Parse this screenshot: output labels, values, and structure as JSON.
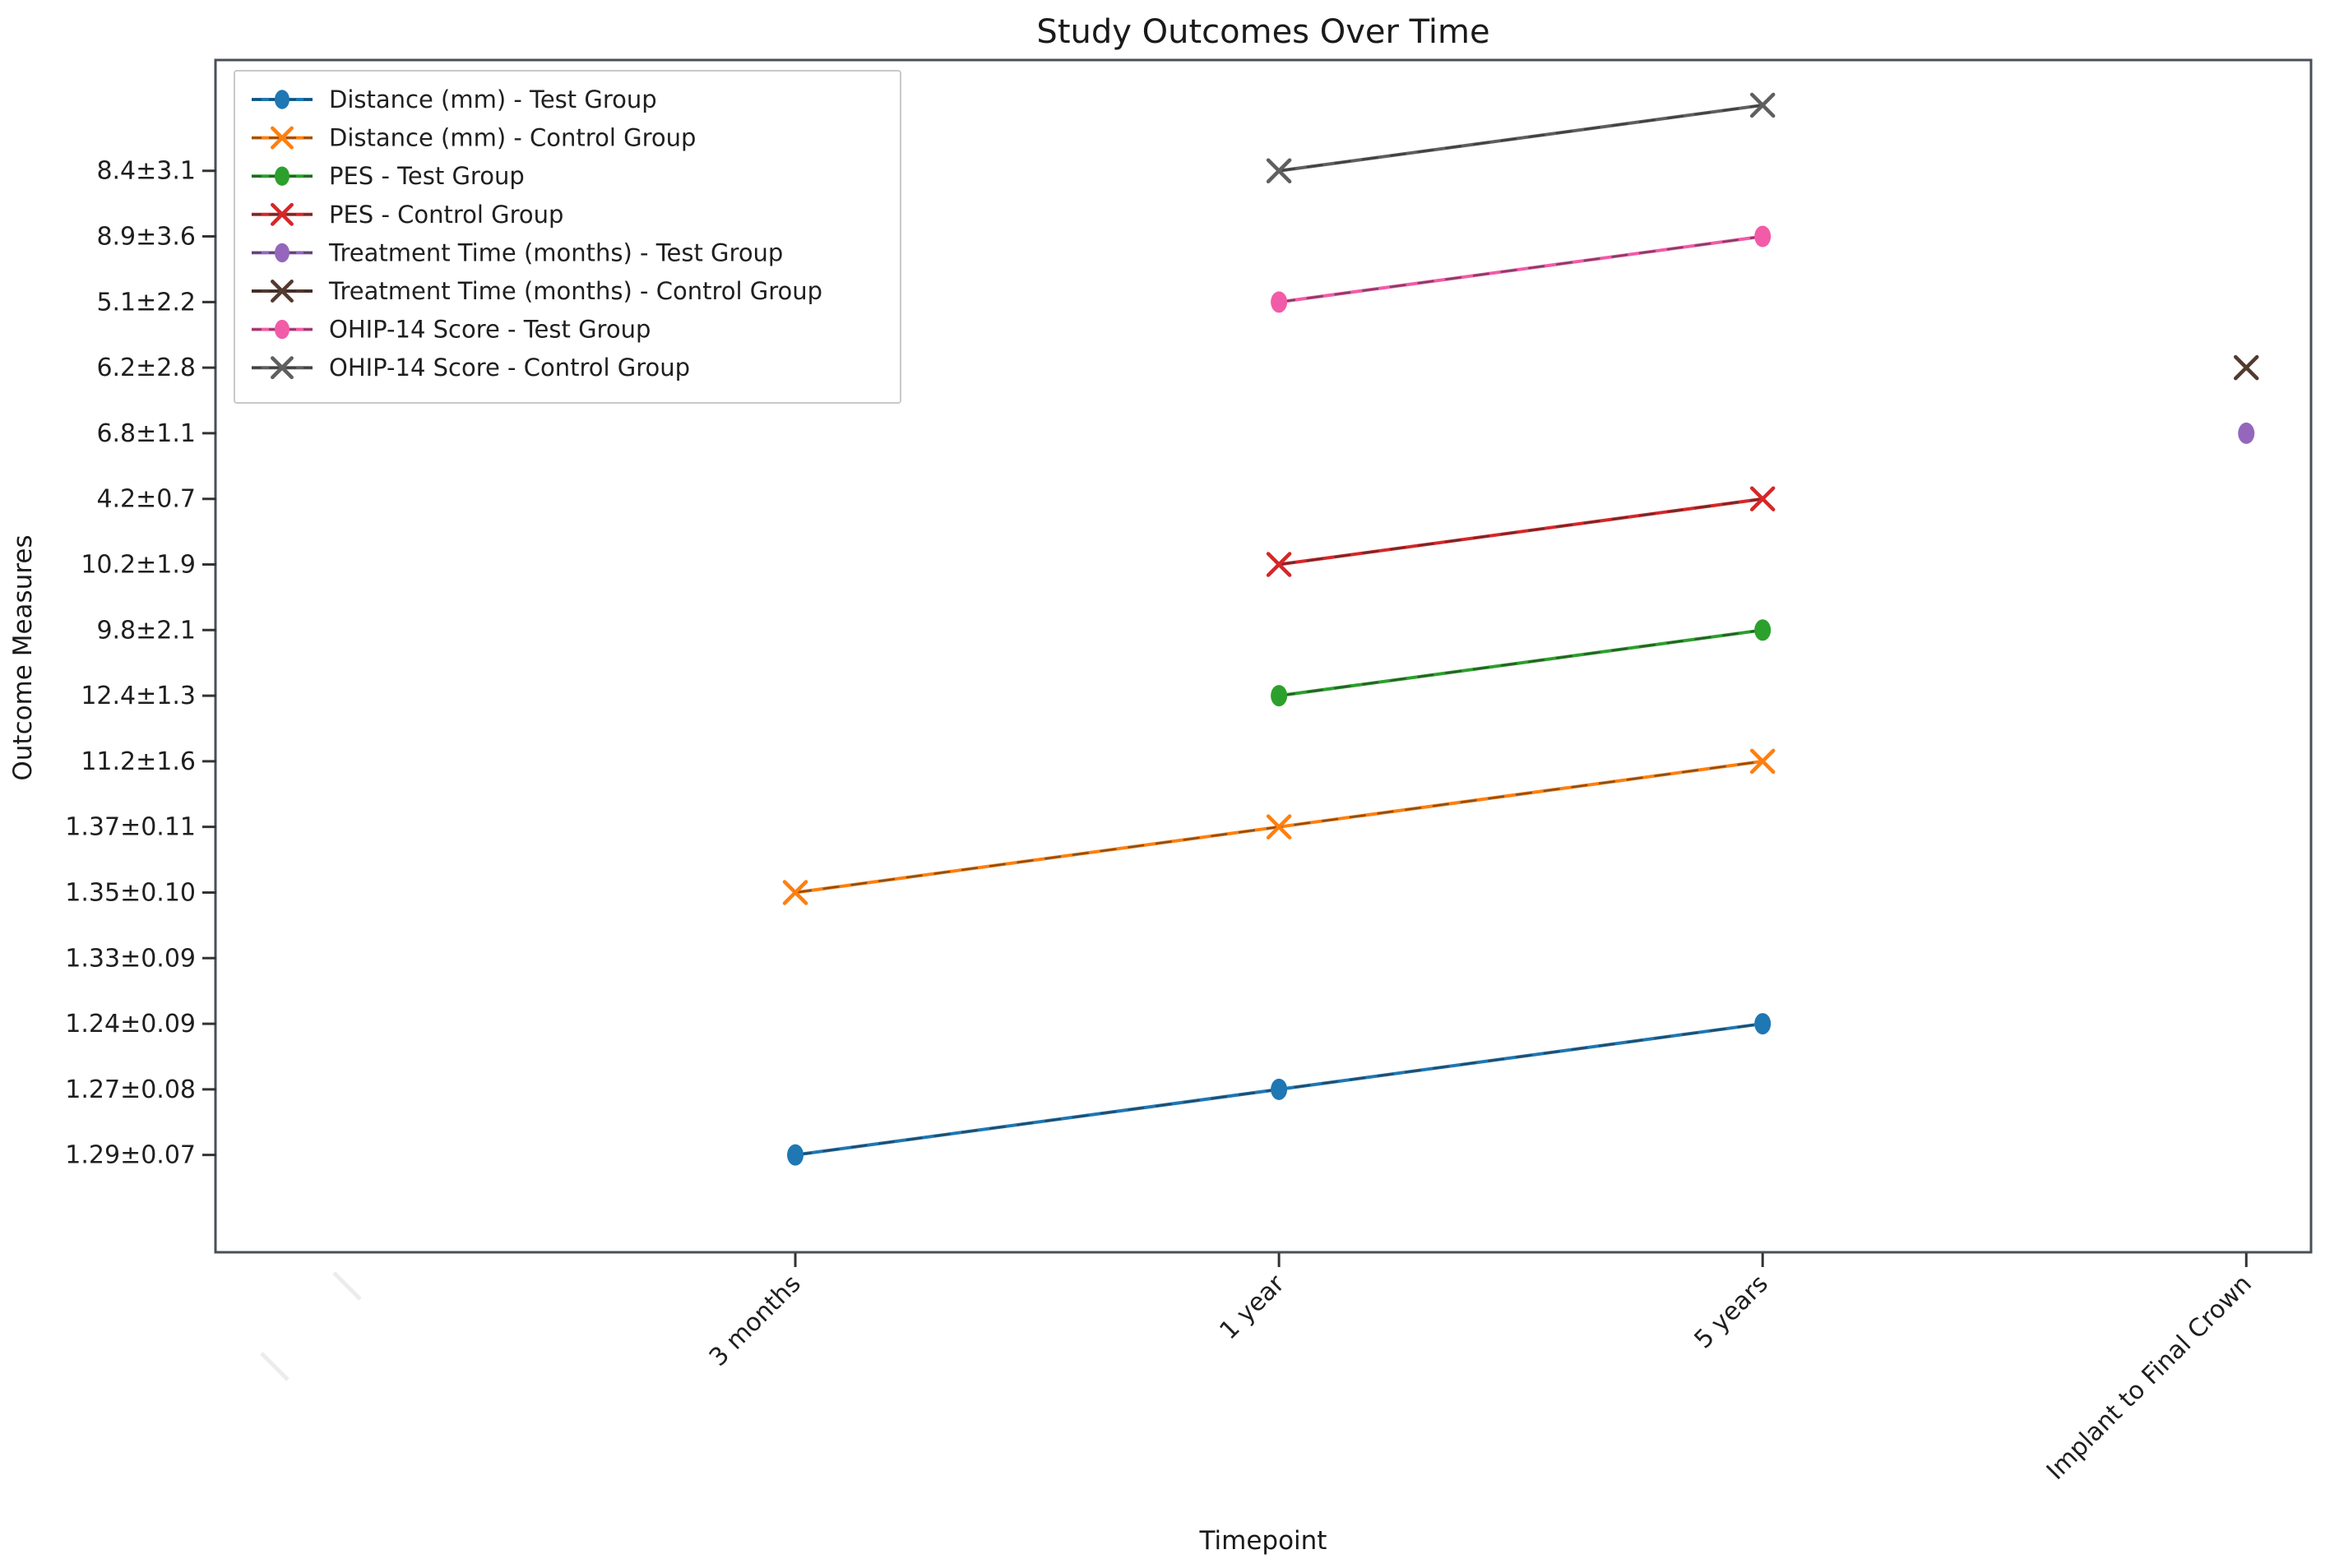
{
  "chart_data": {
    "type": "line",
    "title": "Study Outcomes Over Time",
    "xlabel": "Timepoint",
    "ylabel": "Outcome Measures",
    "grid": false,
    "legend_position": "upper-left-inside",
    "x_categories": [
      "3 months",
      "1 year",
      "5 years",
      "Implant to Final Crown"
    ],
    "y_categories_top_to_bottom": [
      "",
      "8.4±3.1",
      "8.9±3.6",
      "5.1±2.2",
      "6.2±2.8",
      "6.8±1.1",
      "4.2±0.7",
      "10.2±1.9",
      "9.8±2.1",
      "12.4±1.3",
      "11.2±1.6",
      "1.37±0.11",
      "1.35±0.10",
      "1.33±0.09",
      "1.24±0.09",
      "1.27±0.08",
      "1.29±0.07"
    ],
    "series": [
      {
        "name": "Distance (mm) - Test Group",
        "color": "#1f77b4",
        "marker": "circle",
        "points": [
          {
            "x": "3 months",
            "y": "1.29±0.07"
          },
          {
            "x": "1 year",
            "y": "1.27±0.08"
          },
          {
            "x": "5 years",
            "y": "1.24±0.09"
          }
        ]
      },
      {
        "name": "Distance (mm) - Control Group",
        "color": "#ff7f0e",
        "marker": "x",
        "points": [
          {
            "x": "3 months",
            "y": "1.35±0.10"
          },
          {
            "x": "1 year",
            "y": "1.37±0.11"
          },
          {
            "x": "5 years",
            "y": "11.2±1.6"
          }
        ]
      },
      {
        "name": "PES - Test Group",
        "color": "#2ca02c",
        "marker": "circle",
        "points": [
          {
            "x": "1 year",
            "y": "12.4±1.3"
          },
          {
            "x": "5 years",
            "y": "9.8±2.1"
          }
        ]
      },
      {
        "name": "PES - Control Group",
        "color": "#d62728",
        "marker": "x",
        "points": [
          {
            "x": "1 year",
            "y": "10.2±1.9"
          },
          {
            "x": "5 years",
            "y": "4.2±0.7"
          }
        ]
      },
      {
        "name": "Treatment Time (months) - Test Group",
        "color": "#9467bd",
        "marker": "circle",
        "points": [
          {
            "x": "Implant to Final Crown",
            "y": "6.8±1.1"
          }
        ]
      },
      {
        "name": "Treatment Time (months) - Control Group",
        "color": "#53392f",
        "marker": "x",
        "points": [
          {
            "x": "Implant to Final Crown",
            "y": "6.2±2.8"
          }
        ]
      },
      {
        "name": "OHIP-14 Score - Test Group",
        "color": "#f25ba8",
        "marker": "circle",
        "points": [
          {
            "x": "1 year",
            "y": "5.1±2.2"
          },
          {
            "x": "5 years",
            "y": "8.9±3.6"
          }
        ]
      },
      {
        "name": "OHIP-14 Score - Control Group",
        "color": "#5f5f5f",
        "marker": "x",
        "points": [
          {
            "x": "1 year",
            "y": "8.4±3.1"
          },
          {
            "x": "5 years",
            "y": ""
          }
        ]
      }
    ],
    "colors": {
      "spine": "#4a4f58",
      "tick": "#333333",
      "line_overlay_dash": "rgba(40,40,40,0.55)",
      "legend_border": "#c9c9c9",
      "legend_background": "#ffffff"
    },
    "artifacts": {
      "faint_marks": [
        {
          "x": 422,
          "y": 1564
        },
        {
          "x": 334,
          "y": 1662
        }
      ]
    }
  }
}
